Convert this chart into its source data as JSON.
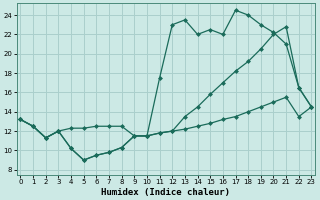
{
  "xlabel": "Humidex (Indice chaleur)",
  "bg_color": "#cce9e5",
  "line_color": "#1a6b5a",
  "grid_color": "#aacfcc",
  "x_ticks": [
    0,
    1,
    2,
    3,
    4,
    5,
    6,
    7,
    8,
    9,
    10,
    11,
    12,
    13,
    14,
    15,
    16,
    17,
    18,
    19,
    20,
    21,
    22,
    23
  ],
  "y_ticks": [
    8,
    10,
    12,
    14,
    16,
    18,
    20,
    22,
    24
  ],
  "xlim": [
    -0.3,
    23.3
  ],
  "ylim": [
    7.5,
    25.2
  ],
  "line1_x": [
    0,
    1,
    2,
    3,
    4,
    5,
    6,
    7,
    8,
    9,
    10,
    11,
    12,
    13,
    14,
    15,
    16,
    17,
    18,
    19,
    20,
    21,
    22,
    23
  ],
  "line1_y": [
    13.2,
    12.5,
    11.3,
    12.0,
    10.2,
    9.0,
    9.5,
    9.8,
    10.3,
    11.5,
    11.5,
    17.5,
    23.0,
    23.5,
    22.0,
    22.5,
    22.0,
    24.5,
    24.0,
    23.0,
    22.2,
    21.0,
    16.5,
    14.5
  ],
  "line2_x": [
    0,
    1,
    2,
    3,
    4,
    5,
    6,
    7,
    8,
    9,
    10,
    11,
    12,
    13,
    14,
    15,
    16,
    17,
    18,
    19,
    20,
    21,
    22,
    23
  ],
  "line2_y": [
    13.2,
    12.5,
    11.3,
    12.0,
    12.3,
    12.3,
    12.5,
    12.5,
    12.5,
    11.5,
    11.5,
    11.8,
    12.0,
    13.5,
    14.5,
    15.8,
    17.0,
    18.2,
    19.2,
    20.5,
    22.0,
    22.8,
    16.5,
    14.5
  ],
  "line3_x": [
    0,
    1,
    2,
    3,
    4,
    5,
    6,
    7,
    8,
    9,
    10,
    11,
    12,
    13,
    14,
    15,
    16,
    17,
    18,
    19,
    20,
    21,
    22,
    23
  ],
  "line3_y": [
    13.2,
    12.5,
    11.3,
    12.0,
    10.2,
    9.0,
    9.5,
    9.8,
    10.3,
    11.5,
    11.5,
    11.8,
    12.0,
    12.2,
    12.5,
    12.8,
    13.2,
    13.5,
    14.0,
    14.5,
    15.0,
    15.5,
    13.5,
    14.5
  ]
}
